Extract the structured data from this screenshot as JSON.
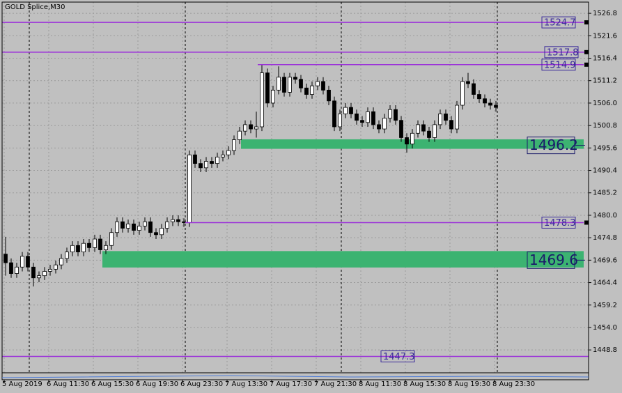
{
  "chart_data": {
    "type": "candlestick",
    "title": "GOLD Splice,M30",
    "categories": [
      "5 Aug 2019",
      null,
      null,
      null,
      null,
      null,
      null,
      null,
      "6 Aug 11:30",
      null,
      null,
      null,
      null,
      null,
      null,
      null,
      "6 Aug 15:30",
      null,
      null,
      null,
      null,
      null,
      null,
      null,
      "6 Aug 19:30",
      null,
      null,
      null,
      null,
      null,
      null,
      null,
      "6 Aug 23:30",
      null,
      null,
      null,
      null,
      null,
      null,
      null,
      "7 Aug 13:30",
      null,
      null,
      null,
      null,
      null,
      null,
      null,
      "7 Aug 17:30",
      null,
      null,
      null,
      null,
      null,
      null,
      null,
      "7 Aug 21:30",
      null,
      null,
      null,
      null,
      null,
      null,
      null,
      "8 Aug 11:30",
      null,
      null,
      null,
      null,
      null,
      null,
      null,
      "8 Aug 15:30",
      null,
      null,
      null,
      null,
      null,
      null,
      null,
      "8 Aug 19:30",
      null,
      null,
      null,
      null,
      null,
      null,
      null,
      "8 Aug 23:30"
    ],
    "open": [
      1471,
      1469,
      1466.5,
      1468,
      1470.5,
      1468,
      1465.5,
      1466,
      1467,
      1467.5,
      1468.5,
      1470,
      1471.5,
      1473,
      1471.5,
      1473.5,
      1472.5,
      1474.5,
      1472,
      1473,
      1476,
      1478.5,
      1477,
      1478,
      1476.5,
      1477.5,
      1478.5,
      1476,
      1475.5,
      1477,
      1478.5,
      1479,
      1478.5,
      1478.3,
      1494,
      1492,
      1491,
      1492.5,
      1492,
      1493.5,
      1494,
      1495,
      1497.5,
      1499.5,
      1501,
      1500,
      1500.5,
      1513,
      1506,
      1509,
      1512,
      1508.5,
      1512,
      1511.5,
      1509.5,
      1508,
      1510,
      1511,
      1509,
      1506.5,
      1500.5,
      1503.5,
      1505,
      1503.5,
      1502,
      1501.5,
      1504,
      1501,
      1500,
      1502.5,
      1504.5,
      1502,
      1498,
      1496.5,
      1499,
      1501,
      1499.5,
      1498,
      1501,
      1503.5,
      1502,
      1500,
      1505.5,
      1511,
      1510.5,
      1508,
      1507,
      1506,
      1505.5
    ],
    "high": [
      1475,
      1470,
      1469,
      1471.5,
      1471.5,
      1469,
      1467,
      1468,
      1468.5,
      1469.5,
      1471,
      1472.5,
      1474,
      1474,
      1474.5,
      1474.5,
      1475.5,
      1475.5,
      1474,
      1477,
      1479.5,
      1479.5,
      1479,
      1479,
      1478.5,
      1479.5,
      1479.5,
      1477,
      1478,
      1479.5,
      1480,
      1480,
      1479.3,
      1495,
      1495,
      1493,
      1493.5,
      1493.5,
      1494.5,
      1495,
      1496,
      1498.5,
      1500.5,
      1502,
      1502,
      1504,
      1514.9,
      1514,
      1510,
      1514.5,
      1513,
      1513,
      1513,
      1512.5,
      1510.5,
      1511,
      1512,
      1512,
      1510,
      1507.5,
      1504.5,
      1506,
      1506,
      1504.5,
      1503,
      1505,
      1505,
      1502,
      1503.5,
      1505.5,
      1505.5,
      1503,
      1499,
      1500,
      1502,
      1502,
      1500.5,
      1502,
      1504.5,
      1504.5,
      1503,
      1506.5,
      1512,
      1513,
      1511.5,
      1509,
      1508,
      1507,
      1506.5
    ],
    "low": [
      1466,
      1465.5,
      1465.5,
      1467,
      1467,
      1463.5,
      1464.5,
      1465,
      1466,
      1466.5,
      1467.5,
      1469,
      1470.5,
      1470.5,
      1470.5,
      1471.5,
      1471.5,
      1471,
      1471,
      1472,
      1475,
      1476,
      1476,
      1475.5,
      1475.5,
      1476.5,
      1475,
      1474.5,
      1474.5,
      1476,
      1477.5,
      1477.5,
      1477.3,
      1477.3,
      1491,
      1490,
      1490,
      1491,
      1491,
      1492.5,
      1493,
      1494,
      1496.5,
      1498.5,
      1499,
      1498,
      1499.5,
      1505,
      1505,
      1508,
      1507.5,
      1507.5,
      1510.5,
      1508.5,
      1507,
      1507,
      1509,
      1508,
      1505.5,
      1499.5,
      1499.5,
      1502.5,
      1502.5,
      1501,
      1500.5,
      1500.5,
      1500,
      1499,
      1499,
      1501.5,
      1501,
      1497,
      1494.5,
      1495.5,
      1498,
      1498.5,
      1497,
      1497,
      1500,
      1501,
      1499,
      1499,
      1504.5,
      1509.5,
      1507,
      1506,
      1505,
      1504.5,
      1504
    ],
    "close": [
      1469,
      1466.5,
      1468,
      1470.5,
      1468,
      1465.5,
      1466,
      1467,
      1467.5,
      1468.5,
      1470,
      1471.5,
      1473,
      1471.5,
      1473.5,
      1472.5,
      1474.5,
      1472,
      1473,
      1476,
      1478.5,
      1477,
      1478,
      1476.5,
      1477.5,
      1478.5,
      1476,
      1475.5,
      1477,
      1478.5,
      1479,
      1478.5,
      1478.3,
      1494,
      1492,
      1491,
      1492.5,
      1492,
      1493.5,
      1494,
      1495,
      1497.5,
      1499.5,
      1501,
      1500,
      1500.5,
      1513,
      1506,
      1509,
      1512,
      1508.5,
      1512,
      1511.5,
      1509.5,
      1508,
      1510,
      1511,
      1509,
      1506.5,
      1500.5,
      1503.5,
      1505,
      1503.5,
      1502,
      1501.5,
      1504,
      1501,
      1500,
      1502.5,
      1504.5,
      1502,
      1498,
      1496.5,
      1499,
      1501,
      1499.5,
      1498,
      1501,
      1503.5,
      1502,
      1500,
      1505.5,
      1511,
      1510.5,
      1508,
      1507,
      1506,
      1505.5,
      1505
    ],
    "ylim": [
      1443.5,
      1529.4
    ],
    "yticks": [
      1526.8,
      1521.6,
      1516.4,
      1511.2,
      {
        "value": 1506,
        "label": "1506.0"
      },
      1500.8,
      1495.6,
      1490.4,
      1485.2,
      {
        "value": 1480,
        "label": "1480.0"
      },
      1474.8,
      1469.6,
      1464.4,
      1459.2,
      {
        "value": 1454,
        "label": "1454.0"
      },
      1448.8
    ],
    "grid": true,
    "levels": [
      1524.7,
      1517.8,
      1514.9,
      1478.3,
      1447.3
    ],
    "zones": [
      {
        "value": 1496.2,
        "top": 1497.6,
        "bottom": 1495.4
      },
      {
        "value": 1469.6,
        "top": 1471.7,
        "bottom": 1467.9
      }
    ],
    "up_color": "#ffffff",
    "down_color": "#000000",
    "level_color": "#9b30d9",
    "zone_color": "#3cb371"
  }
}
